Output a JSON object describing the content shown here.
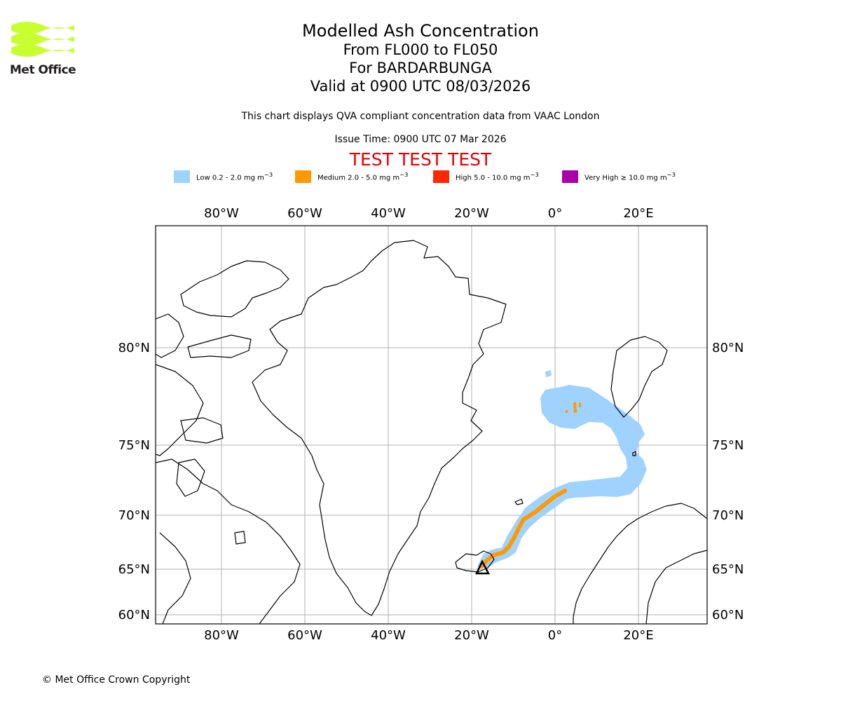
{
  "logo": {
    "text": "Met Office",
    "color": "#c8ff2e"
  },
  "header": {
    "title": "Modelled Ash Concentration",
    "levels": "From FL000 to FL050",
    "volcano": "For BARDARBUNGA",
    "valid": "Valid at 0900 UTC 08/03/2026",
    "subtitle": "This chart displays QVA compliant concentration data from VAAC London",
    "issue_time": "Issue Time: 0900 UTC 07 Mar 2026",
    "test_banner": "TEST TEST TEST"
  },
  "legend": [
    {
      "label": "Low 0.2 - 2.0 mg m",
      "color": "#a0d2ff"
    },
    {
      "label": "Medium 2.0 - 5.0 mg m",
      "color": "#ff9900"
    },
    {
      "label": "High 5.0 - 10.0 mg m",
      "color": "#ff2800"
    },
    {
      "label": "Very High ≥ 10.0 mg m",
      "color": "#aa00aa"
    }
  ],
  "legend_unit_exponent": "−3",
  "map": {
    "lon_ticks": [
      "80°W",
      "60°W",
      "40°W",
      "20°W",
      "0°",
      "20°E"
    ],
    "lat_ticks": [
      "80°N",
      "75°N",
      "70°N",
      "65°N",
      "60°N"
    ],
    "grid": true,
    "volcano_marker": "triangle"
  },
  "footer": {
    "copyright": "© Met Office Crown Copyright"
  }
}
